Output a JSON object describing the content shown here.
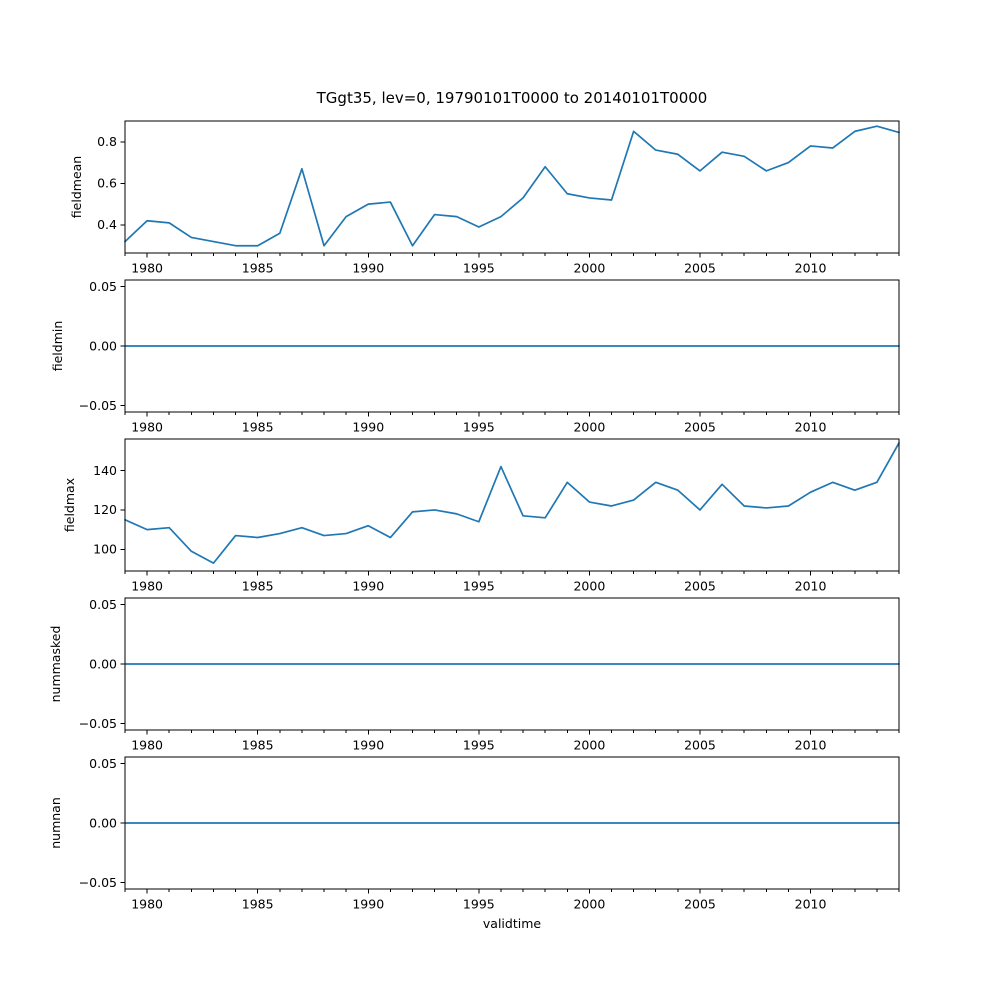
{
  "figure": {
    "background": "#ffffff",
    "text_color": "#000000",
    "frame_color": "#000000"
  },
  "chart_data": {
    "type": "line",
    "title": "TGgt35, lev=0, 19790101T0000 to 20140101T0000",
    "x_label": "validtime",
    "line_color": "#1f77b4",
    "grid": false,
    "legend": "none",
    "xlim": [
      1979,
      2014
    ],
    "x_major_ticks": [
      1980,
      1985,
      1990,
      1995,
      2000,
      2005,
      2010
    ],
    "x_major_tick_labels": [
      "1980",
      "1985",
      "1990",
      "1995",
      "2000",
      "2005",
      "2010"
    ],
    "x_minor_tick_step": 1,
    "x": [
      1979,
      1980,
      1981,
      1982,
      1983,
      1984,
      1985,
      1986,
      1987,
      1988,
      1989,
      1990,
      1991,
      1992,
      1993,
      1994,
      1995,
      1996,
      1997,
      1998,
      1999,
      2000,
      2001,
      2002,
      2003,
      2004,
      2005,
      2006,
      2007,
      2008,
      2009,
      2010,
      2011,
      2012,
      2013,
      2014
    ],
    "subplots": [
      {
        "ylabel": "fieldmean",
        "values": [
          0.32,
          0.42,
          0.41,
          0.34,
          0.32,
          0.3,
          0.3,
          0.36,
          0.67,
          0.3,
          0.44,
          0.5,
          0.51,
          0.3,
          0.45,
          0.44,
          0.39,
          0.44,
          0.53,
          0.68,
          0.55,
          0.53,
          0.52,
          0.85,
          0.76,
          0.74,
          0.66,
          0.75,
          0.73,
          0.66,
          0.7,
          0.78,
          0.77,
          0.85,
          0.875,
          0.845
        ],
        "ylim": [
          0.265,
          0.9
        ],
        "ytick_values": [
          0.4,
          0.6,
          0.8
        ],
        "ytick_labels": [
          "0.4",
          "0.6",
          "0.8"
        ]
      },
      {
        "ylabel": "fieldmin",
        "values": [
          0,
          0,
          0,
          0,
          0,
          0,
          0,
          0,
          0,
          0,
          0,
          0,
          0,
          0,
          0,
          0,
          0,
          0,
          0,
          0,
          0,
          0,
          0,
          0,
          0,
          0,
          0,
          0,
          0,
          0,
          0,
          0,
          0,
          0,
          0,
          0
        ],
        "ylim": [
          -0.0555,
          0.0555
        ],
        "ytick_values": [
          -0.05,
          0.0,
          0.05
        ],
        "ytick_labels": [
          "−0.05",
          "0.00",
          "0.05"
        ]
      },
      {
        "ylabel": "fieldmax",
        "values": [
          115,
          110,
          111,
          99,
          93,
          107,
          106,
          108,
          111,
          107,
          108,
          112,
          106,
          119,
          120,
          118,
          114,
          142,
          117,
          116,
          134,
          124,
          122,
          125,
          134,
          130,
          120,
          133,
          122,
          121,
          122,
          129,
          134,
          130,
          134,
          154
        ],
        "ylim": [
          89,
          156
        ],
        "ytick_values": [
          100,
          120,
          140
        ],
        "ytick_labels": [
          "100",
          "120",
          "140"
        ]
      },
      {
        "ylabel": "nummasked",
        "values": [
          0,
          0,
          0,
          0,
          0,
          0,
          0,
          0,
          0,
          0,
          0,
          0,
          0,
          0,
          0,
          0,
          0,
          0,
          0,
          0,
          0,
          0,
          0,
          0,
          0,
          0,
          0,
          0,
          0,
          0,
          0,
          0,
          0,
          0,
          0,
          0
        ],
        "ylim": [
          -0.0555,
          0.0555
        ],
        "ytick_values": [
          -0.05,
          0.0,
          0.05
        ],
        "ytick_labels": [
          "−0.05",
          "0.00",
          "0.05"
        ]
      },
      {
        "ylabel": "numnan",
        "values": [
          0,
          0,
          0,
          0,
          0,
          0,
          0,
          0,
          0,
          0,
          0,
          0,
          0,
          0,
          0,
          0,
          0,
          0,
          0,
          0,
          0,
          0,
          0,
          0,
          0,
          0,
          0,
          0,
          0,
          0,
          0,
          0,
          0,
          0,
          0,
          0
        ],
        "ylim": [
          -0.0555,
          0.0555
        ],
        "ytick_values": [
          -0.05,
          0.0,
          0.05
        ],
        "ytick_labels": [
          "−0.05",
          "0.00",
          "0.05"
        ]
      }
    ]
  }
}
